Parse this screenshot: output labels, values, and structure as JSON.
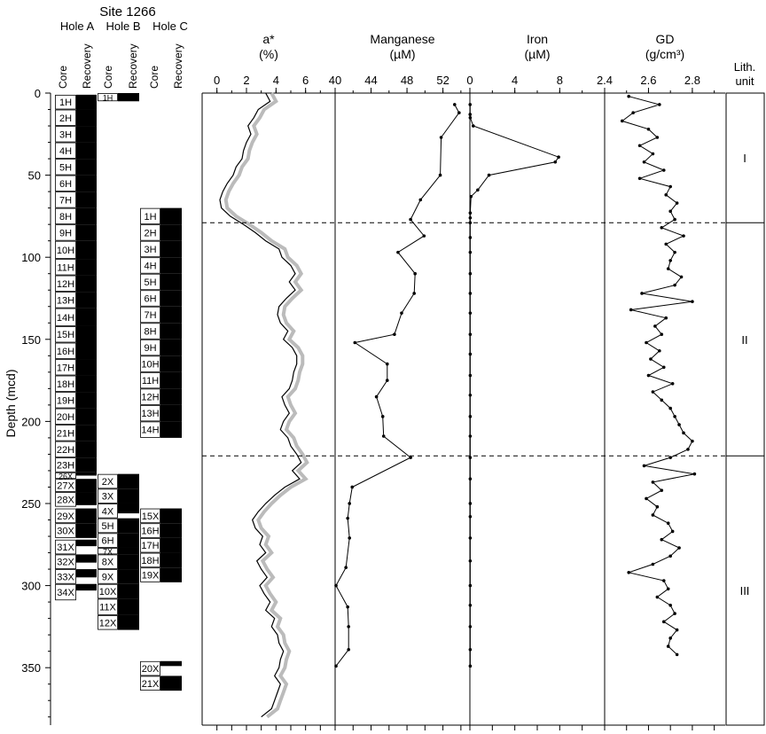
{
  "site_label": "Site 1266",
  "hole_labels": [
    "Hole A",
    "Hole B",
    "Hole C"
  ],
  "core_col_label": "Core",
  "recovery_col_label": "Recovery",
  "depth_axis": {
    "label": "Depth (mcd)",
    "ticks": [
      0,
      50,
      100,
      150,
      200,
      250,
      300,
      350
    ],
    "range": [
      0,
      385
    ]
  },
  "panels": [
    {
      "id": "astar",
      "title": "a*",
      "unit": "(%)",
      "range": [
        -1,
        8
      ],
      "ticks": [
        0,
        2,
        4,
        6
      ],
      "tick_labels": [
        "0",
        "2",
        "4",
        "6"
      ]
    },
    {
      "id": "mn",
      "title": "Manganese",
      "unit": "(µM)",
      "range": [
        40,
        55
      ],
      "ticks": [
        40,
        44,
        48,
        52
      ],
      "tick_labels": [
        "40",
        "44",
        "48",
        "52"
      ]
    },
    {
      "id": "fe",
      "title": "Iron",
      "unit": "(µM)",
      "range": [
        0,
        12
      ],
      "ticks": [
        0,
        4,
        8
      ],
      "tick_labels": [
        "0",
        "4",
        "8"
      ]
    },
    {
      "id": "gd",
      "title": "GD",
      "unit": "(g/cm³)",
      "range": [
        2.4,
        2.95
      ],
      "ticks": [
        2.4,
        2.6,
        2.8
      ],
      "tick_labels": [
        "2.4",
        "2.6",
        "2.8"
      ]
    }
  ],
  "lith": {
    "title": "Lith.",
    "subtitle": "unit",
    "units": [
      {
        "label": "I",
        "top": 0,
        "bottom": 79
      },
      {
        "label": "II",
        "top": 79,
        "bottom": 221
      },
      {
        "label": "III",
        "top": 221,
        "bottom": 385
      }
    ]
  },
  "boundaries": [
    79,
    221
  ],
  "cores": {
    "A": [
      {
        "label": "1H",
        "top": 1,
        "bottom": 10,
        "rec_bottom": 10
      },
      {
        "label": "2H",
        "top": 10,
        "bottom": 20,
        "rec_bottom": 20
      },
      {
        "label": "3H",
        "top": 20,
        "bottom": 30,
        "rec_bottom": 30
      },
      {
        "label": "4H",
        "top": 30,
        "bottom": 40,
        "rec_bottom": 40
      },
      {
        "label": "5H",
        "top": 40,
        "bottom": 50,
        "rec_bottom": 50
      },
      {
        "label": "6H",
        "top": 50,
        "bottom": 60,
        "rec_bottom": 60
      },
      {
        "label": "7H",
        "top": 60,
        "bottom": 70,
        "rec_bottom": 70
      },
      {
        "label": "8H",
        "top": 70,
        "bottom": 80,
        "rec_bottom": 80
      },
      {
        "label": "9H",
        "top": 80,
        "bottom": 90,
        "rec_bottom": 90
      },
      {
        "label": "10H",
        "top": 90,
        "bottom": 101,
        "rec_bottom": 101
      },
      {
        "label": "11H",
        "top": 101,
        "bottom": 111,
        "rec_bottom": 111
      },
      {
        "label": "12H",
        "top": 111,
        "bottom": 121,
        "rec_bottom": 121
      },
      {
        "label": "13H",
        "top": 121,
        "bottom": 131,
        "rec_bottom": 131
      },
      {
        "label": "14H",
        "top": 131,
        "bottom": 142,
        "rec_bottom": 142
      },
      {
        "label": "15H",
        "top": 142,
        "bottom": 152,
        "rec_bottom": 152
      },
      {
        "label": "16H",
        "top": 152,
        "bottom": 162,
        "rec_bottom": 162
      },
      {
        "label": "17H",
        "top": 162,
        "bottom": 172,
        "rec_bottom": 172
      },
      {
        "label": "18H",
        "top": 172,
        "bottom": 182,
        "rec_bottom": 182
      },
      {
        "label": "19H",
        "top": 182,
        "bottom": 192,
        "rec_bottom": 192
      },
      {
        "label": "20H",
        "top": 192,
        "bottom": 202,
        "rec_bottom": 202
      },
      {
        "label": "21H",
        "top": 202,
        "bottom": 212,
        "rec_bottom": 212
      },
      {
        "label": "22H",
        "top": 212,
        "bottom": 222,
        "rec_bottom": 222
      },
      {
        "label": "23H",
        "top": 222,
        "bottom": 231,
        "rec_bottom": 231
      },
      {
        "label": "26X",
        "top": 231,
        "bottom": 235,
        "rec_bottom": 233
      },
      {
        "label": "27X",
        "top": 235,
        "bottom": 243,
        "rec_bottom": 243
      },
      {
        "label": "28X",
        "top": 243,
        "bottom": 252,
        "rec_bottom": 251
      },
      {
        "label": "29X",
        "top": 253,
        "bottom": 262,
        "rec_bottom": 262
      },
      {
        "label": "30X",
        "top": 262,
        "bottom": 271,
        "rec_bottom": 271
      },
      {
        "label": "31X",
        "top": 272,
        "bottom": 281,
        "rec_bottom": 276
      },
      {
        "label": "32X",
        "top": 281,
        "bottom": 290,
        "rec_bottom": 286
      },
      {
        "label": "33X",
        "top": 290,
        "bottom": 299,
        "rec_bottom": 295
      },
      {
        "label": "34X",
        "top": 299,
        "bottom": 309,
        "rec_bottom": 303
      }
    ],
    "B": [
      {
        "label": "1H",
        "top": 0,
        "bottom": 5,
        "rec_bottom": 5
      },
      {
        "label": "2X",
        "top": 232,
        "bottom": 241,
        "rec_bottom": 241
      },
      {
        "label": "3X",
        "top": 241,
        "bottom": 250,
        "rec_bottom": 250
      },
      {
        "label": "4X",
        "top": 250,
        "bottom": 259,
        "rec_bottom": 256
      },
      {
        "label": "5H",
        "top": 259,
        "bottom": 268,
        "rec_bottom": 268
      },
      {
        "label": "6H",
        "top": 268,
        "bottom": 277,
        "rec_bottom": 277
      },
      {
        "label": "7X",
        "top": 277,
        "bottom": 281,
        "rec_bottom": 281
      },
      {
        "label": "8X",
        "top": 281,
        "bottom": 290,
        "rec_bottom": 290
      },
      {
        "label": "9X",
        "top": 290,
        "bottom": 299,
        "rec_bottom": 299
      },
      {
        "label": "10X",
        "top": 299,
        "bottom": 308,
        "rec_bottom": 308
      },
      {
        "label": "11X",
        "top": 308,
        "bottom": 318,
        "rec_bottom": 318
      },
      {
        "label": "12X",
        "top": 318,
        "bottom": 327,
        "rec_bottom": 327
      }
    ],
    "C": [
      {
        "label": "1H",
        "top": 70,
        "bottom": 80,
        "rec_bottom": 80
      },
      {
        "label": "2H",
        "top": 80,
        "bottom": 90,
        "rec_bottom": 90
      },
      {
        "label": "3H",
        "top": 90,
        "bottom": 100,
        "rec_bottom": 100
      },
      {
        "label": "4H",
        "top": 100,
        "bottom": 110,
        "rec_bottom": 110
      },
      {
        "label": "5H",
        "top": 110,
        "bottom": 120,
        "rec_bottom": 120
      },
      {
        "label": "6H",
        "top": 120,
        "bottom": 130,
        "rec_bottom": 130
      },
      {
        "label": "7H",
        "top": 130,
        "bottom": 140,
        "rec_bottom": 140
      },
      {
        "label": "8H",
        "top": 140,
        "bottom": 150,
        "rec_bottom": 150
      },
      {
        "label": "9H",
        "top": 150,
        "bottom": 160,
        "rec_bottom": 160
      },
      {
        "label": "10H",
        "top": 160,
        "bottom": 170,
        "rec_bottom": 170
      },
      {
        "label": "11H",
        "top": 170,
        "bottom": 180,
        "rec_bottom": 180
      },
      {
        "label": "12H",
        "top": 180,
        "bottom": 190,
        "rec_bottom": 190
      },
      {
        "label": "13H",
        "top": 190,
        "bottom": 200,
        "rec_bottom": 200
      },
      {
        "label": "14H",
        "top": 200,
        "bottom": 210,
        "rec_bottom": 210
      },
      {
        "label": "15X",
        "top": 253,
        "bottom": 262,
        "rec_bottom": 262
      },
      {
        "label": "16H",
        "top": 262,
        "bottom": 271,
        "rec_bottom": 271
      },
      {
        "label": "17H",
        "top": 271,
        "bottom": 280,
        "rec_bottom": 280
      },
      {
        "label": "18H",
        "top": 280,
        "bottom": 289,
        "rec_bottom": 289
      },
      {
        "label": "19X",
        "top": 289,
        "bottom": 298,
        "rec_bottom": 298
      },
      {
        "label": "20X",
        "top": 346,
        "bottom": 355,
        "rec_bottom": 349
      },
      {
        "label": "21X",
        "top": 355,
        "bottom": 364,
        "rec_bottom": 364
      }
    ]
  },
  "chart_data": {
    "type": "line",
    "y_axis": "depth",
    "astar_profile": {
      "depth": [
        0,
        5,
        10,
        15,
        20,
        25,
        30,
        35,
        40,
        45,
        50,
        55,
        60,
        65,
        70,
        75,
        80,
        85,
        90,
        95,
        100,
        105,
        110,
        115,
        120,
        125,
        130,
        135,
        140,
        145,
        150,
        155,
        160,
        165,
        170,
        175,
        180,
        185,
        190,
        195,
        200,
        205,
        210,
        215,
        220,
        225,
        230,
        235,
        240,
        245,
        250,
        255,
        260,
        265,
        270,
        275,
        280,
        285,
        290,
        295,
        300,
        305,
        310,
        315,
        320,
        325,
        330,
        335,
        340,
        345,
        350,
        355,
        360,
        365,
        370,
        375,
        380
      ],
      "values": [
        3.3,
        3.6,
        2.8,
        2.5,
        2.1,
        2.3,
        2.0,
        1.8,
        1.7,
        1.3,
        1.1,
        0.7,
        0.4,
        0.2,
        0.3,
        0.9,
        1.8,
        2.6,
        3.3,
        4.2,
        4.4,
        5.0,
        5.3,
        4.9,
        5.3,
        4.7,
        4.2,
        4.1,
        4.3,
        4.8,
        4.5,
        5.1,
        5.4,
        5.4,
        5.2,
        5.1,
        4.9,
        4.4,
        4.6,
        4.9,
        4.5,
        4.3,
        4.8,
        5.0,
        5.4,
        5.7,
        5.1,
        5.6,
        4.6,
        3.9,
        3.3,
        2.8,
        2.4,
        2.6,
        3.1,
        2.9,
        3.3,
        2.7,
        3.0,
        3.4,
        2.9,
        3.2,
        3.6,
        3.3,
        3.9,
        3.7,
        4.1,
        4.2,
        4.5,
        4.3,
        4.2,
        3.9,
        4.3,
        4.1,
        3.9,
        3.7,
        3.0
      ]
    },
    "manganese": {
      "depth": [
        7,
        12,
        27,
        50,
        65,
        77,
        87,
        97,
        110,
        122,
        134,
        147,
        152,
        165,
        175,
        185,
        197,
        209,
        222,
        240,
        250,
        259,
        271,
        289,
        300,
        313,
        325,
        339,
        349
      ],
      "values": [
        53.3,
        53.8,
        51.8,
        51.7,
        49.5,
        48.4,
        49.9,
        47.0,
        48.9,
        48.8,
        47.4,
        46.6,
        42.2,
        45.8,
        45.8,
        44.6,
        45.3,
        45.4,
        48.4,
        41.9,
        41.6,
        41.4,
        41.6,
        41.2,
        40.1,
        41.4,
        41.5,
        41.5,
        40.1
      ]
    },
    "iron": {
      "depth": [
        7,
        13,
        15,
        20,
        39,
        42,
        50,
        59,
        63,
        73,
        76,
        79,
        88,
        97,
        110,
        122,
        134,
        147,
        159,
        172,
        184,
        197,
        209,
        222,
        235,
        250,
        258,
        271,
        285,
        300,
        312,
        325,
        339,
        349
      ],
      "values": [
        0.02,
        0.02,
        0.03,
        0.3,
        7.9,
        7.6,
        1.7,
        0.7,
        0.1,
        0.03,
        0.03,
        0.03,
        0.03,
        0.03,
        0.03,
        0.03,
        0.03,
        0.03,
        0.03,
        0.03,
        0.03,
        0.03,
        0.03,
        0.03,
        0.03,
        0.03,
        0.03,
        0.03,
        0.03,
        0.03,
        0.03,
        0.03,
        0.03,
        0.03
      ]
    },
    "gd": {
      "depth": [
        2,
        7,
        12,
        17,
        22,
        27,
        32,
        37,
        42,
        47,
        52,
        57,
        62,
        67,
        72,
        77,
        82,
        87,
        92,
        97,
        102,
        107,
        112,
        117,
        122,
        127,
        132,
        137,
        142,
        147,
        152,
        157,
        162,
        167,
        172,
        177,
        182,
        187,
        192,
        197,
        202,
        207,
        212,
        217,
        222,
        227,
        232,
        237,
        242,
        247,
        252,
        257,
        262,
        267,
        272,
        277,
        282,
        287,
        292,
        297,
        302,
        307,
        312,
        317,
        322,
        327,
        332,
        337,
        342
      ],
      "values": [
        2.51,
        2.65,
        2.53,
        2.48,
        2.6,
        2.64,
        2.56,
        2.62,
        2.58,
        2.67,
        2.56,
        2.7,
        2.68,
        2.73,
        2.7,
        2.72,
        2.66,
        2.76,
        2.68,
        2.72,
        2.7,
        2.69,
        2.75,
        2.72,
        2.57,
        2.8,
        2.52,
        2.68,
        2.63,
        2.66,
        2.59,
        2.65,
        2.61,
        2.67,
        2.6,
        2.71,
        2.62,
        2.66,
        2.7,
        2.72,
        2.74,
        2.76,
        2.8,
        2.78,
        2.7,
        2.58,
        2.81,
        2.62,
        2.66,
        2.59,
        2.64,
        2.62,
        2.69,
        2.71,
        2.66,
        2.74,
        2.7,
        2.62,
        2.51,
        2.67,
        2.69,
        2.64,
        2.7,
        2.72,
        2.67,
        2.73,
        2.7,
        2.69,
        2.73
      ]
    }
  }
}
